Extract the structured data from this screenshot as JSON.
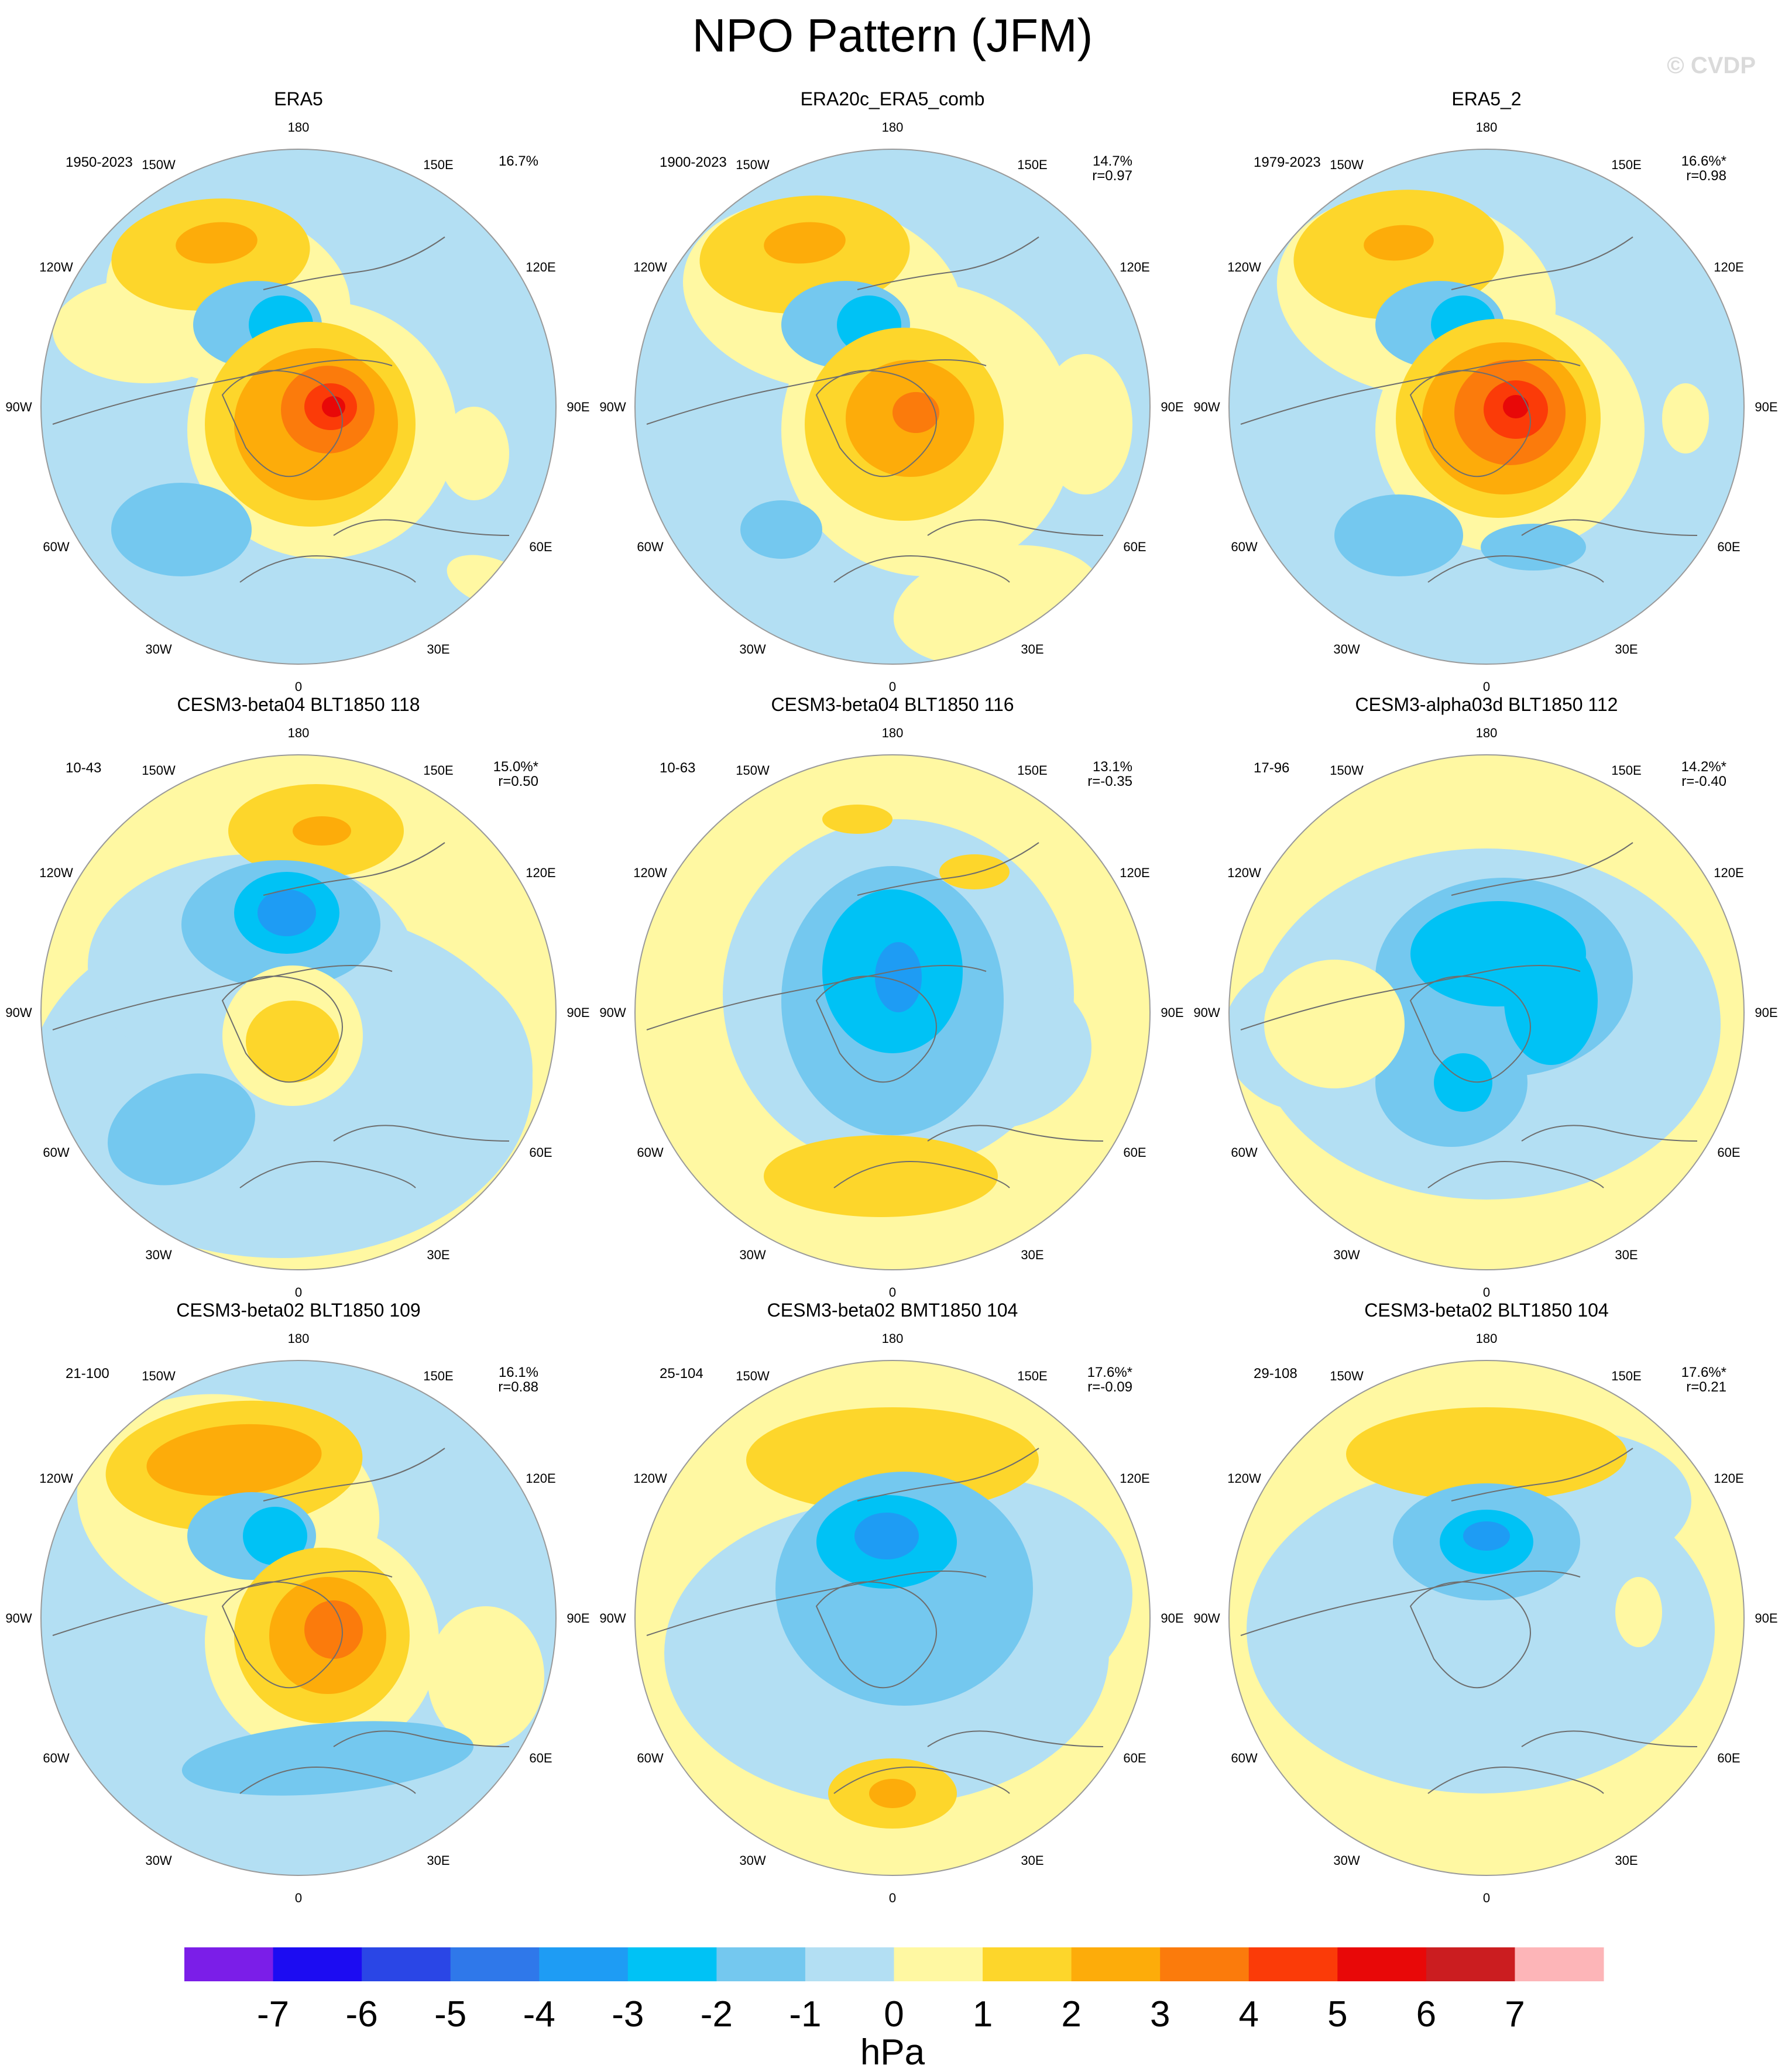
{
  "title": "NPO Pattern (JFM)",
  "watermark": "© CVDP",
  "panels": [
    {
      "name": "ERA5",
      "period": "1950-2023",
      "pct": "16.7%",
      "r": "",
      "pattern": "obs1"
    },
    {
      "name": "ERA20c_ERA5_comb",
      "period": "1900-2023",
      "pct": "14.7%",
      "r": "r=0.97",
      "pattern": "obs2"
    },
    {
      "name": "ERA5_2",
      "period": "1979-2023",
      "pct": "16.6%*",
      "r": "r=0.98",
      "pattern": "obs3"
    },
    {
      "name": "CESM3-beta04 BLT1850 118",
      "period": "10-43",
      "pct": "15.0%*",
      "r": "r=0.50",
      "pattern": "m1"
    },
    {
      "name": "CESM3-beta04 BLT1850 116",
      "period": "10-63",
      "pct": "13.1%",
      "r": "r=-0.35",
      "pattern": "m2"
    },
    {
      "name": "CESM3-alpha03d BLT1850 112",
      "period": "17-96",
      "pct": "14.2%*",
      "r": "r=-0.40",
      "pattern": "m3"
    },
    {
      "name": "CESM3-beta02 BLT1850 109",
      "period": "21-100",
      "pct": "16.1%",
      "r": "r=0.88",
      "pattern": "m4"
    },
    {
      "name": "CESM3-beta02 BMT1850 104",
      "period": "25-104",
      "pct": "17.6%*",
      "r": "r=-0.09",
      "pattern": "m5"
    },
    {
      "name": "CESM3-beta02 BLT1850 104",
      "period": "29-108",
      "pct": "17.6%*",
      "r": "r=0.21",
      "pattern": "m6"
    }
  ],
  "lon_labels": [
    "180",
    "150E",
    "120E",
    "90E",
    "60E",
    "30E",
    "0",
    "30W",
    "60W",
    "90W",
    "120W",
    "150W"
  ],
  "colorbar": {
    "colors": [
      "#7b1ee8",
      "#1c0cf2",
      "#2a46e6",
      "#2f78ea",
      "#1e9cf4",
      "#00c2f5",
      "#74c8ef",
      "#b3dff3",
      "#fff8a2",
      "#fdd62b",
      "#fdac0a",
      "#fb7b0c",
      "#fb3b08",
      "#e80808",
      "#cb1d20",
      "#fdb5b8"
    ],
    "ticks": [
      "-7",
      "-6",
      "-5",
      "-4",
      "-3",
      "-2",
      "-1",
      "0",
      "1",
      "2",
      "3",
      "4",
      "5",
      "6",
      "7"
    ],
    "unit": "hPa"
  },
  "palette": {
    "land_outline": "#6e6e6e",
    "frame": "#9a9a9a",
    "pos1": "#fff8a2",
    "pos2": "#fdd62b",
    "pos3": "#fdac0a",
    "pos4": "#fb7b0c",
    "pos5": "#fb3b08",
    "pos6": "#e80808",
    "neg1": "#b3dff3",
    "neg2": "#74c8ef",
    "neg3": "#00c2f5",
    "neg4": "#1e9cf4",
    "neg5": "#2f78ea"
  }
}
